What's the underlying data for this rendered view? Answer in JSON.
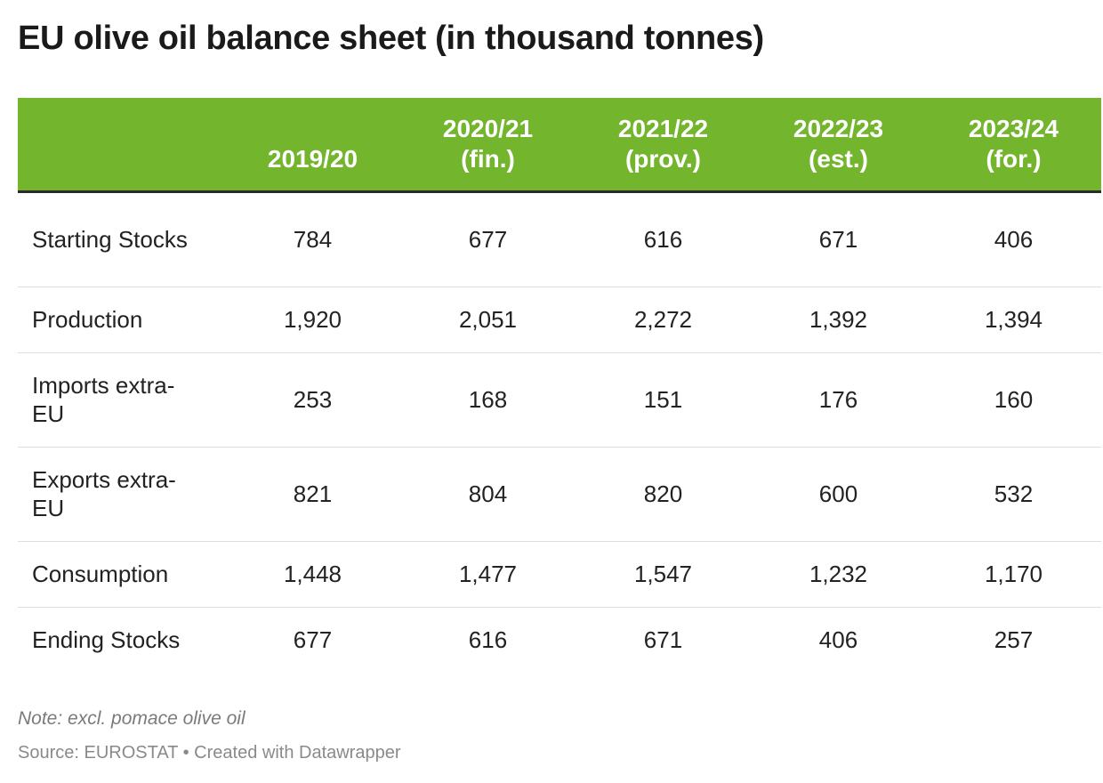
{
  "title": "EU olive oil balance sheet (in thousand tonnes)",
  "chart_data": {
    "type": "table",
    "title": "EU olive oil balance sheet (in thousand tonnes)",
    "columns": [
      {
        "line1": "2019/20",
        "line2": ""
      },
      {
        "line1": "2020/21",
        "line2": "(fin.)"
      },
      {
        "line1": "2021/22",
        "line2": "(prov.)"
      },
      {
        "line1": "2022/23",
        "line2": "(est.)"
      },
      {
        "line1": "2023/24",
        "line2": "(for.)"
      }
    ],
    "rows": [
      {
        "label": "Starting Stocks",
        "values": [
          "784",
          "677",
          "616",
          "671",
          "406"
        ]
      },
      {
        "label": "Production",
        "values": [
          "1,920",
          "2,051",
          "2,272",
          "1,392",
          "1,394"
        ]
      },
      {
        "label": "Imports extra-EU",
        "values": [
          "253",
          "168",
          "151",
          "176",
          "160"
        ]
      },
      {
        "label": "Exports extra-EU",
        "values": [
          "821",
          "804",
          "820",
          "600",
          "532"
        ]
      },
      {
        "label": "Consumption",
        "values": [
          "1,448",
          "1,477",
          "1,547",
          "1,232",
          "1,170"
        ]
      },
      {
        "label": "Ending Stocks",
        "values": [
          "677",
          "616",
          "671",
          "406",
          "257"
        ]
      }
    ],
    "header_color": "#73b52c"
  },
  "footer": {
    "note": "Note: excl. pomace olive oil",
    "source": "Source: EUROSTAT • Created with Datawrapper"
  }
}
